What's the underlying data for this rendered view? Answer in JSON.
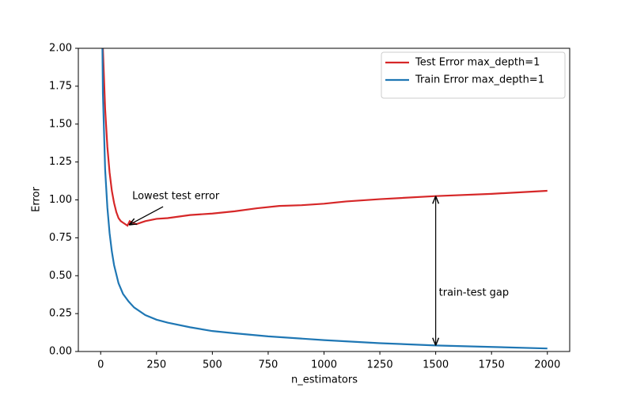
{
  "chart_data": {
    "type": "line",
    "xlabel": "n_estimators",
    "ylabel": "Error",
    "xlim": [
      -100,
      2100
    ],
    "ylim": [
      0,
      2
    ],
    "xticks": [
      0,
      250,
      500,
      750,
      1000,
      1250,
      1500,
      1750,
      2000
    ],
    "yticks": [
      {
        "value": 0,
        "label": "0.00"
      },
      {
        "value": 0.25,
        "label": "0.25"
      },
      {
        "value": 0.5,
        "label": "0.50"
      },
      {
        "value": 0.75,
        "label": "0.75"
      },
      {
        "value": 1,
        "label": "1.00"
      },
      {
        "value": 1.25,
        "label": "1.25"
      },
      {
        "value": 1.5,
        "label": "1.50"
      },
      {
        "value": 1.75,
        "label": "1.75"
      },
      {
        "value": 2,
        "label": "2.00"
      }
    ],
    "legend": "upper right",
    "series": [
      {
        "name": "Test Error max_depth=1",
        "color": "#d62728",
        "x": [
          5,
          10,
          20,
          30,
          40,
          50,
          60,
          70,
          80,
          90,
          100,
          110,
          120,
          130,
          140,
          160,
          180,
          200,
          250,
          300,
          400,
          500,
          600,
          700,
          800,
          900,
          1000,
          1100,
          1250,
          1500,
          1750,
          2000
        ],
        "values": [
          2.6,
          2.0,
          1.6,
          1.35,
          1.18,
          1.06,
          0.98,
          0.92,
          0.88,
          0.86,
          0.85,
          0.84,
          0.83,
          0.86,
          0.85,
          0.84,
          0.85,
          0.86,
          0.875,
          0.88,
          0.9,
          0.91,
          0.925,
          0.945,
          0.96,
          0.965,
          0.975,
          0.99,
          1.005,
          1.025,
          1.04,
          1.06
        ]
      },
      {
        "name": "Train Error max_depth=1",
        "color": "#1f77b4",
        "x": [
          5,
          10,
          20,
          30,
          40,
          50,
          60,
          80,
          100,
          125,
          150,
          200,
          250,
          300,
          400,
          500,
          600,
          750,
          1000,
          1250,
          1500,
          1750,
          2000
        ],
        "values": [
          2.4,
          1.7,
          1.2,
          0.95,
          0.78,
          0.66,
          0.57,
          0.45,
          0.38,
          0.33,
          0.29,
          0.24,
          0.21,
          0.19,
          0.16,
          0.135,
          0.12,
          0.1,
          0.075,
          0.055,
          0.04,
          0.03,
          0.02
        ]
      }
    ],
    "annotations": [
      "Lowest test error",
      "train-test gap"
    ]
  }
}
